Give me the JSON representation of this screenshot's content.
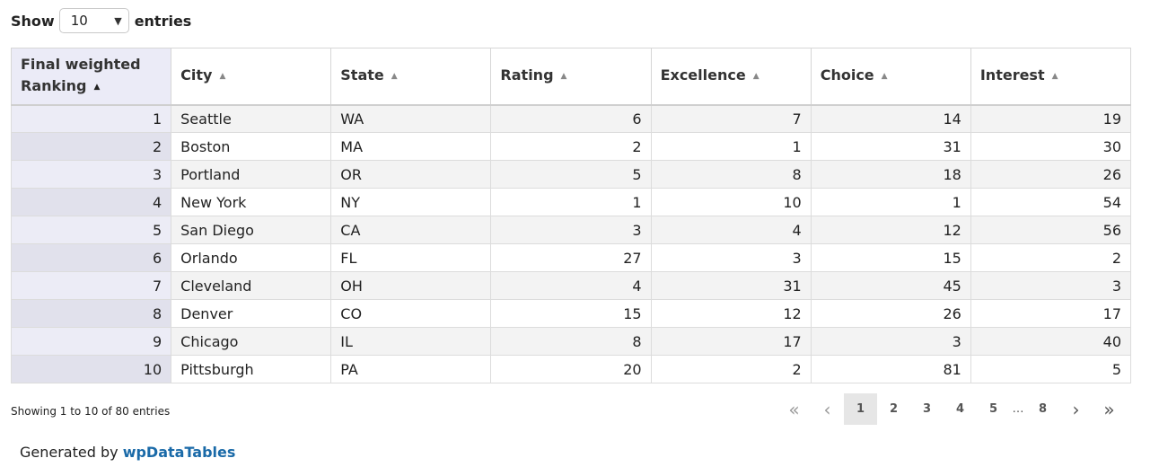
{
  "length": {
    "label_before": "Show",
    "value": "10",
    "label_after": "entries"
  },
  "table": {
    "headers": [
      "Final weighted Ranking",
      "City",
      "State",
      "Rating",
      "Excellence",
      "Choice",
      "Interest"
    ],
    "rows": [
      [
        "1",
        "Seattle",
        "WA",
        "6",
        "7",
        "14",
        "19"
      ],
      [
        "2",
        "Boston",
        "MA",
        "2",
        "1",
        "31",
        "30"
      ],
      [
        "3",
        "Portland",
        "OR",
        "5",
        "8",
        "18",
        "26"
      ],
      [
        "4",
        "New York",
        "NY",
        "1",
        "10",
        "1",
        "54"
      ],
      [
        "5",
        "San Diego",
        "CA",
        "3",
        "4",
        "12",
        "56"
      ],
      [
        "6",
        "Orlando",
        "FL",
        "27",
        "3",
        "15",
        "2"
      ],
      [
        "7",
        "Cleveland",
        "OH",
        "4",
        "31",
        "45",
        "3"
      ],
      [
        "8",
        "Denver",
        "CO",
        "15",
        "12",
        "26",
        "17"
      ],
      [
        "9",
        "Chicago",
        "IL",
        "8",
        "17",
        "3",
        "40"
      ],
      [
        "10",
        "Pittsburgh",
        "PA",
        "20",
        "2",
        "81",
        "5"
      ]
    ]
  },
  "info": "Showing 1 to 10 of 80 entries",
  "pagination": {
    "first": "«",
    "prev": "‹",
    "pages": [
      "1",
      "2",
      "3",
      "4",
      "5"
    ],
    "ellipsis": "…",
    "last_page": "8",
    "next": "›",
    "last": "»"
  },
  "credit": {
    "prefix": "Generated by",
    "link": "wpDataTables"
  },
  "colors": {
    "accent_link": "#1a6aa8",
    "sorted_header": "#ebebf7"
  }
}
